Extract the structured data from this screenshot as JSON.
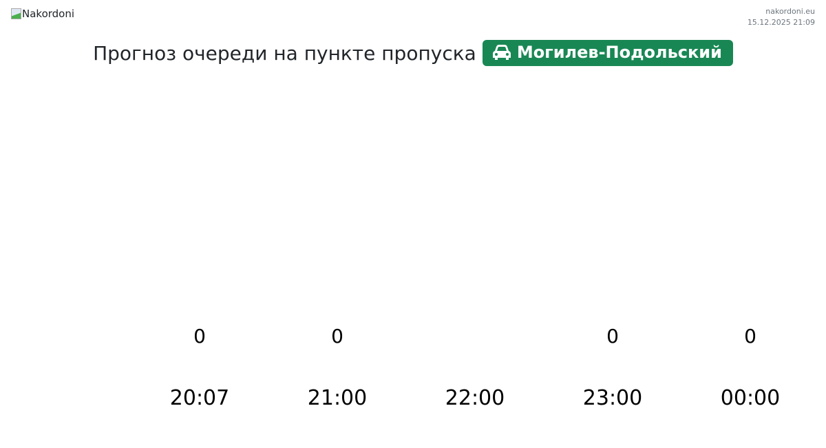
{
  "header": {
    "logo_alt": "Nakordoni",
    "site": "nakordoni.eu",
    "timestamp": "15.12.2025 21:09"
  },
  "title": {
    "text": "Прогноз очереди на пункте пропуска",
    "checkpoint": "Могилев-Подольский",
    "checkpoint_icon": "car-icon",
    "badge_color": "#198754"
  },
  "chart_data": {
    "type": "bar",
    "categories": [
      "20:07",
      "21:00",
      "22:00",
      "23:00",
      "00:00"
    ],
    "values": [
      0,
      0,
      null,
      0,
      0
    ],
    "value_labels": [
      "0",
      "0",
      "",
      "0",
      "0"
    ]
  }
}
